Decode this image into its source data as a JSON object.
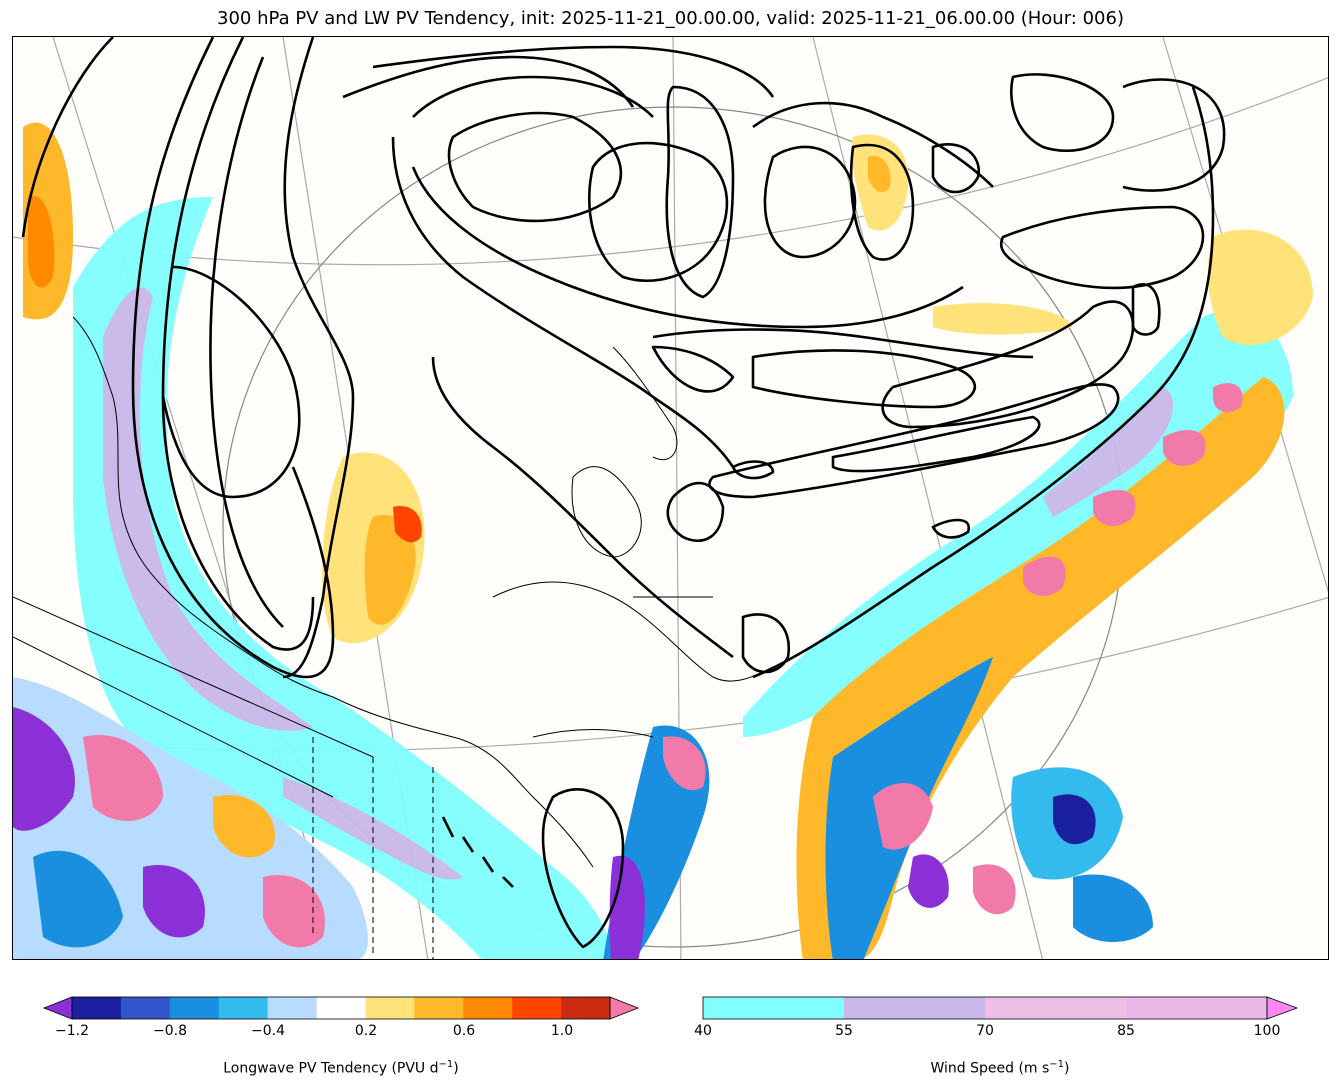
{
  "title": "300 hPa PV and LW PV Tendency, init: 2025-11-21_00.00.00, valid: 2025-11-21_06.00.00 (Hour: 006)",
  "colors": {
    "tendency": [
      "#8b2fd6",
      "#1a1f9e",
      "#3355cc",
      "#1a8fe0",
      "#33bbee",
      "#b8dcff",
      "#ffffff",
      "#ffe27a",
      "#ffb829",
      "#ff8a00",
      "#ff4500",
      "#c92a10",
      "#f27aa8"
    ],
    "wind": [
      "#80fffe",
      "#c8b8eb",
      "#eebfe4",
      "#eab8e6",
      "#ff88f2"
    ],
    "contour": "#000000",
    "coast": "#000000",
    "grid": "#aaaaaa"
  },
  "colorbar_tendency": {
    "tick_labels": [
      "−1.2",
      "−0.8",
      "−0.4",
      "0.2",
      "0.6",
      "1.0"
    ],
    "label_text": "Longwave PV Tendency (PVU d",
    "label_unit_sup": "−1",
    "label_close": ")"
  },
  "colorbar_wind": {
    "tick_labels": [
      "40",
      "55",
      "70",
      "85",
      "100"
    ],
    "label_text": "Wind Speed (m s",
    "label_unit_sup": "−1",
    "label_close": ")"
  }
}
